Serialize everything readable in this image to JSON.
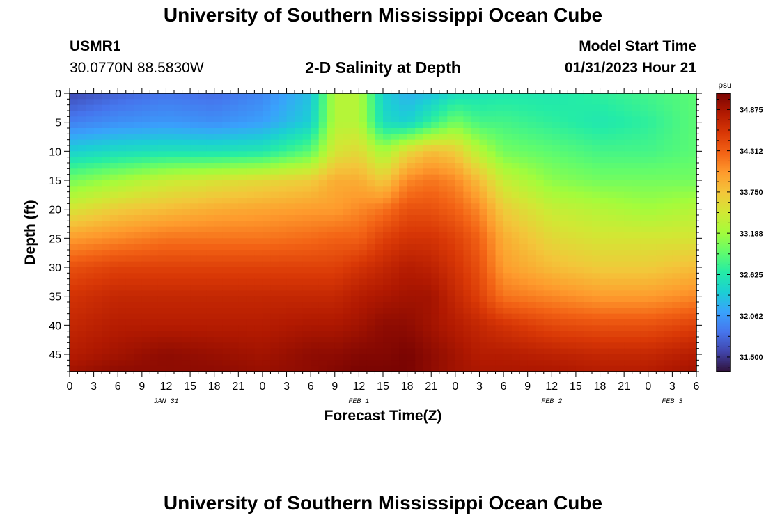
{
  "page": {
    "title_top": "University of Southern Mississippi Ocean Cube",
    "title_bottom": "University of Southern Mississippi Ocean Cube",
    "station_id": "USMR1",
    "station_coords": "30.0770N  88.5830W",
    "plot_title": "2-D Salinity at Depth",
    "model_start_label": "Model Start Time",
    "model_start_value": "01/31/2023 Hour 21"
  },
  "colors": {
    "colormap": [
      "#30123b",
      "#4145ab",
      "#4675ed",
      "#39a2fc",
      "#1bcfd4",
      "#24eca6",
      "#61fc6c",
      "#a4fc3b",
      "#d1e834",
      "#f3c63a",
      "#fe9b2d",
      "#f36315",
      "#d93806",
      "#b11901",
      "#7a0402"
    ]
  },
  "chart_data": {
    "type": "heatmap",
    "title": "2-D Salinity at Depth",
    "xlabel": "Forecast Time(Z)",
    "ylabel": "Depth (ft)",
    "x_ticks": [
      "0",
      "3",
      "6",
      "9",
      "12",
      "15",
      "18",
      "21",
      "0",
      "3",
      "6",
      "9",
      "12",
      "15",
      "18",
      "21",
      "0",
      "3",
      "6",
      "9",
      "12",
      "15",
      "18",
      "21",
      "0",
      "3",
      "6"
    ],
    "x_range_hours": [
      0,
      78
    ],
    "date_labels": [
      {
        "label": "JAN 31",
        "hour": 12
      },
      {
        "label": "FEB 1",
        "hour": 36
      },
      {
        "label": "FEB 2",
        "hour": 60
      },
      {
        "label": "FEB 3",
        "hour": 75
      }
    ],
    "y_ticks": [
      0,
      5,
      10,
      15,
      20,
      25,
      30,
      35,
      40,
      45
    ],
    "ylim": [
      0,
      48
    ],
    "y_inverted": true,
    "colorbar": {
      "unit": "psu",
      "min": 31.3,
      "max": 35.1,
      "tick_values": [
        34.875,
        34.312,
        33.75,
        33.188,
        32.625,
        32.062,
        31.5
      ],
      "tick_labels": [
        "34.875",
        "34.312",
        "33.750",
        "33.188",
        "32.625",
        "32.062",
        "31.500"
      ]
    },
    "x_hours": [
      0,
      6,
      12,
      18,
      24,
      30,
      33,
      36,
      39,
      42,
      45,
      48,
      51,
      54,
      60,
      66,
      72,
      78
    ],
    "depths_ft": [
      0,
      5,
      10,
      15,
      20,
      25,
      30,
      35,
      40,
      45,
      48
    ],
    "salinity_psu": [
      [
        31.6,
        31.75,
        31.85,
        31.8,
        31.95,
        32.3,
        33.3,
        33.3,
        32.4,
        32.2,
        32.3,
        32.5,
        32.55,
        32.6,
        32.6,
        32.7,
        32.8,
        32.9
      ],
      [
        31.9,
        32.0,
        32.05,
        32.0,
        32.1,
        32.4,
        33.3,
        33.3,
        32.5,
        32.4,
        32.7,
        33.0,
        32.8,
        32.8,
        32.7,
        32.6,
        32.7,
        32.9
      ],
      [
        32.4,
        32.5,
        32.55,
        32.55,
        32.6,
        32.9,
        33.5,
        33.6,
        33.2,
        33.6,
        33.8,
        33.7,
        33.3,
        33.0,
        32.9,
        32.8,
        32.8,
        32.9
      ],
      [
        33.0,
        33.2,
        33.4,
        33.5,
        33.6,
        33.7,
        33.9,
        33.9,
        33.7,
        34.1,
        34.2,
        34.1,
        33.8,
        33.4,
        33.1,
        33.0,
        33.0,
        33.0
      ],
      [
        33.5,
        33.7,
        33.8,
        33.9,
        33.95,
        34.0,
        34.0,
        34.1,
        34.2,
        34.4,
        34.4,
        34.3,
        34.1,
        33.7,
        33.4,
        33.3,
        33.2,
        33.3
      ],
      [
        34.0,
        34.1,
        34.2,
        34.2,
        34.2,
        34.25,
        34.3,
        34.3,
        34.5,
        34.6,
        34.6,
        34.5,
        34.3,
        33.9,
        33.6,
        33.5,
        33.5,
        33.5
      ],
      [
        34.4,
        34.5,
        34.5,
        34.5,
        34.5,
        34.5,
        34.5,
        34.6,
        34.7,
        34.8,
        34.75,
        34.6,
        34.4,
        34.0,
        33.8,
        33.7,
        33.7,
        33.8
      ],
      [
        34.6,
        34.7,
        34.7,
        34.7,
        34.7,
        34.7,
        34.7,
        34.8,
        34.85,
        34.9,
        34.9,
        34.7,
        34.5,
        34.2,
        34.1,
        34.0,
        34.0,
        34.1
      ],
      [
        34.7,
        34.8,
        34.8,
        34.8,
        34.8,
        34.85,
        34.85,
        34.9,
        35.0,
        35.0,
        34.9,
        34.8,
        34.7,
        34.6,
        34.45,
        34.4,
        34.4,
        34.5
      ],
      [
        34.8,
        34.9,
        35.0,
        34.95,
        34.9,
        35.0,
        35.0,
        35.05,
        35.05,
        35.1,
        35.0,
        34.9,
        34.8,
        34.8,
        34.75,
        34.7,
        34.7,
        34.8
      ],
      [
        34.9,
        35.0,
        35.0,
        35.0,
        34.95,
        35.0,
        35.05,
        35.1,
        35.1,
        35.1,
        35.0,
        34.9,
        34.85,
        34.85,
        34.85,
        34.8,
        34.8,
        34.9
      ]
    ]
  }
}
